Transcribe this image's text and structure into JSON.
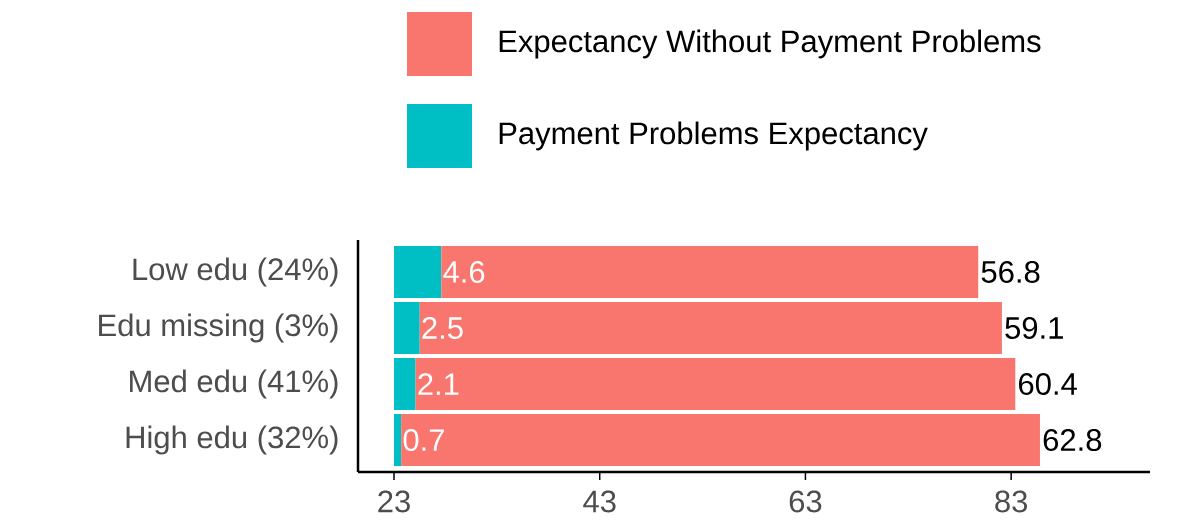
{
  "chart_data": {
    "type": "bar",
    "orientation": "horizontal",
    "categories": [
      "Low edu (24%)",
      "Edu missing (3%)",
      "Med edu (41%)",
      "High edu (32%)"
    ],
    "series": [
      {
        "name": "Payment Problems Expectancy",
        "color": "#00bfc4",
        "base": [
          23,
          23,
          23,
          23
        ],
        "values": [
          4.6,
          2.5,
          2.1,
          0.7
        ],
        "value_labels": [
          "4.6",
          "2.5",
          "2.1",
          "0.7"
        ]
      },
      {
        "name": "Expectancy Without Payment Problems",
        "color": "#f8766d",
        "base": [
          27.6,
          25.5,
          25.1,
          23.7
        ],
        "values": [
          52.2,
          56.6,
          58.3,
          62.1
        ]
      }
    ],
    "totals": [
      "56.8",
      "59.1",
      "60.4",
      "62.8"
    ],
    "xlim": [
      19.5,
      96.5
    ],
    "xticks": [
      23,
      43,
      63,
      83
    ],
    "legend": "top",
    "grid": false
  }
}
